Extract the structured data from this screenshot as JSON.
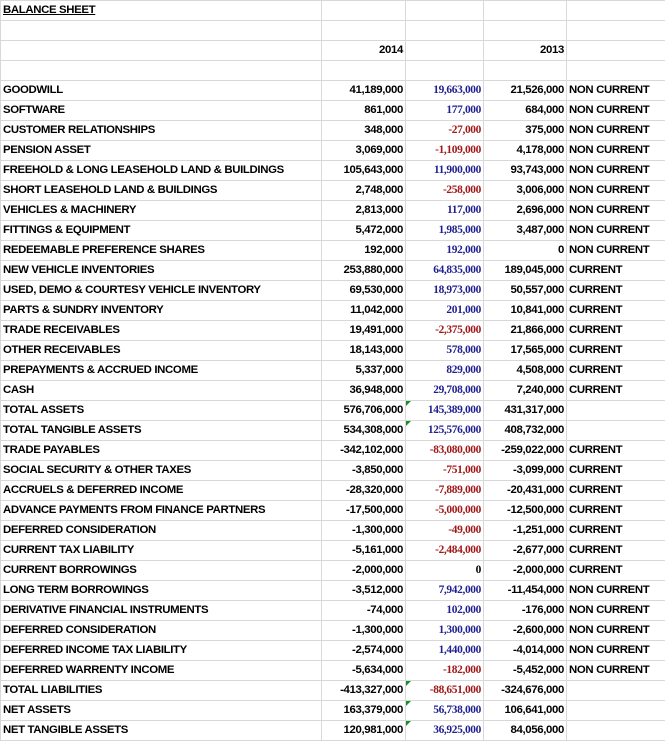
{
  "sheet": {
    "title": "BALANCE SHEET",
    "year_current": "2014",
    "year_prior": "2013",
    "rows": [
      {
        "label": "GOODWILL",
        "v2014": "41,189,000",
        "change": "19,663,000",
        "v2013": "21,526,000",
        "cls": "NON CURRENT",
        "sign": "pos",
        "flag": false
      },
      {
        "label": "SOFTWARE",
        "v2014": "861,000",
        "change": "177,000",
        "v2013": "684,000",
        "cls": "NON CURRENT",
        "sign": "pos",
        "flag": false
      },
      {
        "label": "CUSTOMER RELATIONSHIPS",
        "v2014": "348,000",
        "change": "-27,000",
        "v2013": "375,000",
        "cls": "NON CURRENT",
        "sign": "neg",
        "flag": false
      },
      {
        "label": "PENSION ASSET",
        "v2014": "3,069,000",
        "change": "-1,109,000",
        "v2013": "4,178,000",
        "cls": "NON CURRENT",
        "sign": "neg",
        "flag": false
      },
      {
        "label": "FREEHOLD & LONG LEASEHOLD LAND & BUILDINGS",
        "v2014": "105,643,000",
        "change": "11,900,000",
        "v2013": "93,743,000",
        "cls": "NON CURRENT",
        "sign": "pos",
        "flag": false
      },
      {
        "label": "SHORT LEASEHOLD LAND & BUILDINGS",
        "v2014": "2,748,000",
        "change": "-258,000",
        "v2013": "3,006,000",
        "cls": "NON CURRENT",
        "sign": "neg",
        "flag": false
      },
      {
        "label": "VEHICLES & MACHINERY",
        "v2014": "2,813,000",
        "change": "117,000",
        "v2013": "2,696,000",
        "cls": "NON CURRENT",
        "sign": "pos",
        "flag": false
      },
      {
        "label": "FITTINGS & EQUIPMENT",
        "v2014": "5,472,000",
        "change": "1,985,000",
        "v2013": "3,487,000",
        "cls": "NON CURRENT",
        "sign": "pos",
        "flag": false
      },
      {
        "label": "REDEEMABLE PREFERENCE SHARES",
        "v2014": "192,000",
        "change": "192,000",
        "v2013": "0",
        "cls": "NON CURRENT",
        "sign": "pos",
        "flag": false
      },
      {
        "label": "NEW VEHICLE INVENTORIES",
        "v2014": "253,880,000",
        "change": "64,835,000",
        "v2013": "189,045,000",
        "cls": "CURRENT",
        "sign": "pos",
        "flag": false
      },
      {
        "label": "USED, DEMO & COURTESY VEHICLE INVENTORY",
        "v2014": "69,530,000",
        "change": "18,973,000",
        "v2013": "50,557,000",
        "cls": "CURRENT",
        "sign": "pos",
        "flag": false
      },
      {
        "label": "PARTS & SUNDRY INVENTORY",
        "v2014": "11,042,000",
        "change": "201,000",
        "v2013": "10,841,000",
        "cls": "CURRENT",
        "sign": "pos",
        "flag": false
      },
      {
        "label": "TRADE RECEIVABLES",
        "v2014": "19,491,000",
        "change": "-2,375,000",
        "v2013": "21,866,000",
        "cls": "CURRENT",
        "sign": "neg",
        "flag": false
      },
      {
        "label": "OTHER RECEIVABLES",
        "v2014": "18,143,000",
        "change": "578,000",
        "v2013": "17,565,000",
        "cls": "CURRENT",
        "sign": "pos",
        "flag": false
      },
      {
        "label": "PREPAYMENTS & ACCRUED INCOME",
        "v2014": "5,337,000",
        "change": "829,000",
        "v2013": "4,508,000",
        "cls": "CURRENT",
        "sign": "pos",
        "flag": false
      },
      {
        "label": "CASH",
        "v2014": "36,948,000",
        "change": "29,708,000",
        "v2013": "7,240,000",
        "cls": "CURRENT",
        "sign": "pos",
        "flag": false
      },
      {
        "label": "TOTAL ASSETS",
        "v2014": "576,706,000",
        "change": "145,389,000",
        "v2013": "431,317,000",
        "cls": "",
        "sign": "pos",
        "flag": true
      },
      {
        "label": "TOTAL TANGIBLE ASSETS",
        "v2014": "534,308,000",
        "change": "125,576,000",
        "v2013": "408,732,000",
        "cls": "",
        "sign": "pos",
        "flag": true
      },
      {
        "label": "TRADE PAYABLES",
        "v2014": "-342,102,000",
        "change": "-83,080,000",
        "v2013": "-259,022,000",
        "cls": "CURRENT",
        "sign": "neg",
        "flag": false
      },
      {
        "label": "SOCIAL SECURITY & OTHER TAXES",
        "v2014": "-3,850,000",
        "change": "-751,000",
        "v2013": "-3,099,000",
        "cls": "CURRENT",
        "sign": "neg",
        "flag": false
      },
      {
        "label": "ACCRUELS & DEFERRED INCOME",
        "v2014": "-28,320,000",
        "change": "-7,889,000",
        "v2013": "-20,431,000",
        "cls": "CURRENT",
        "sign": "neg",
        "flag": false
      },
      {
        "label": "ADVANCE PAYMENTS FROM FINANCE PARTNERS",
        "v2014": "-17,500,000",
        "change": "-5,000,000",
        "v2013": "-12,500,000",
        "cls": "CURRENT",
        "sign": "neg",
        "flag": false
      },
      {
        "label": "DEFERRED CONSIDERATION",
        "v2014": "-1,300,000",
        "change": "-49,000",
        "v2013": "-1,251,000",
        "cls": "CURRENT",
        "sign": "neg",
        "flag": false
      },
      {
        "label": "CURRENT TAX LIABILITY",
        "v2014": "-5,161,000",
        "change": "-2,484,000",
        "v2013": "-2,677,000",
        "cls": "CURRENT",
        "sign": "neg",
        "flag": false
      },
      {
        "label": "CURRENT BORROWINGS",
        "v2014": "-2,000,000",
        "change": "0",
        "v2013": "-2,000,000",
        "cls": "CURRENT",
        "sign": "zero",
        "flag": false
      },
      {
        "label": "LONG TERM BORROWINGS",
        "v2014": "-3,512,000",
        "change": "7,942,000",
        "v2013": "-11,454,000",
        "cls": "NON CURRENT",
        "sign": "pos",
        "flag": false
      },
      {
        "label": "DERIVATIVE FINANCIAL INSTRUMENTS",
        "v2014": "-74,000",
        "change": "102,000",
        "v2013": "-176,000",
        "cls": "NON CURRENT",
        "sign": "pos",
        "flag": false
      },
      {
        "label": "DEFERRED CONSIDERATION",
        "v2014": "-1,300,000",
        "change": "1,300,000",
        "v2013": "-2,600,000",
        "cls": "NON CURRENT",
        "sign": "pos",
        "flag": false
      },
      {
        "label": "DEFERRED INCOME TAX LIABILITY",
        "v2014": "-2,574,000",
        "change": "1,440,000",
        "v2013": "-4,014,000",
        "cls": "NON CURRENT",
        "sign": "pos",
        "flag": false
      },
      {
        "label": "DEFERRED WARRENTY INCOME",
        "v2014": "-5,634,000",
        "change": "-182,000",
        "v2013": "-5,452,000",
        "cls": "NON CURRENT",
        "sign": "neg",
        "flag": false
      },
      {
        "label": "TOTAL LIABILITIES",
        "v2014": "-413,327,000",
        "change": "-88,651,000",
        "v2013": "-324,676,000",
        "cls": "",
        "sign": "neg",
        "flag": true
      },
      {
        "label": "NET ASSETS",
        "v2014": "163,379,000",
        "change": "56,738,000",
        "v2013": "106,641,000",
        "cls": "",
        "sign": "pos",
        "flag": true
      },
      {
        "label": "NET TANGIBLE ASSETS",
        "v2014": "120,981,000",
        "change": "36,925,000",
        "v2013": "84,056,000",
        "cls": "",
        "sign": "pos",
        "flag": true
      }
    ]
  }
}
